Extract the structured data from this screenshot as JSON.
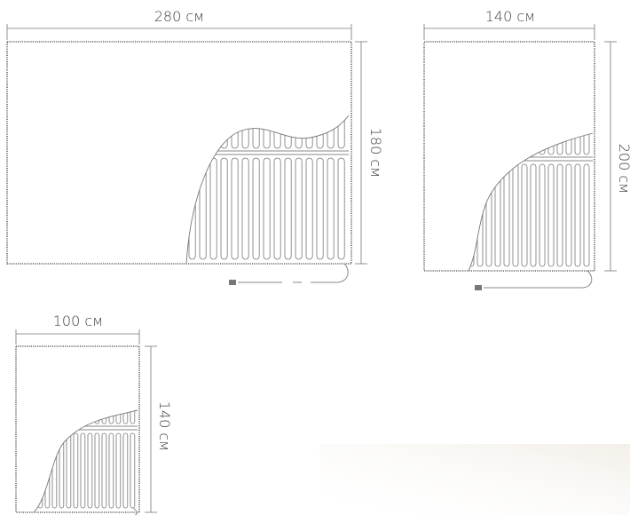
{
  "items": [
    {
      "width_label": "280 см",
      "height_label": "180 см"
    },
    {
      "width_label": "140 см",
      "height_label": "200 см"
    },
    {
      "width_label": "100 см",
      "height_label": "140 см"
    }
  ]
}
